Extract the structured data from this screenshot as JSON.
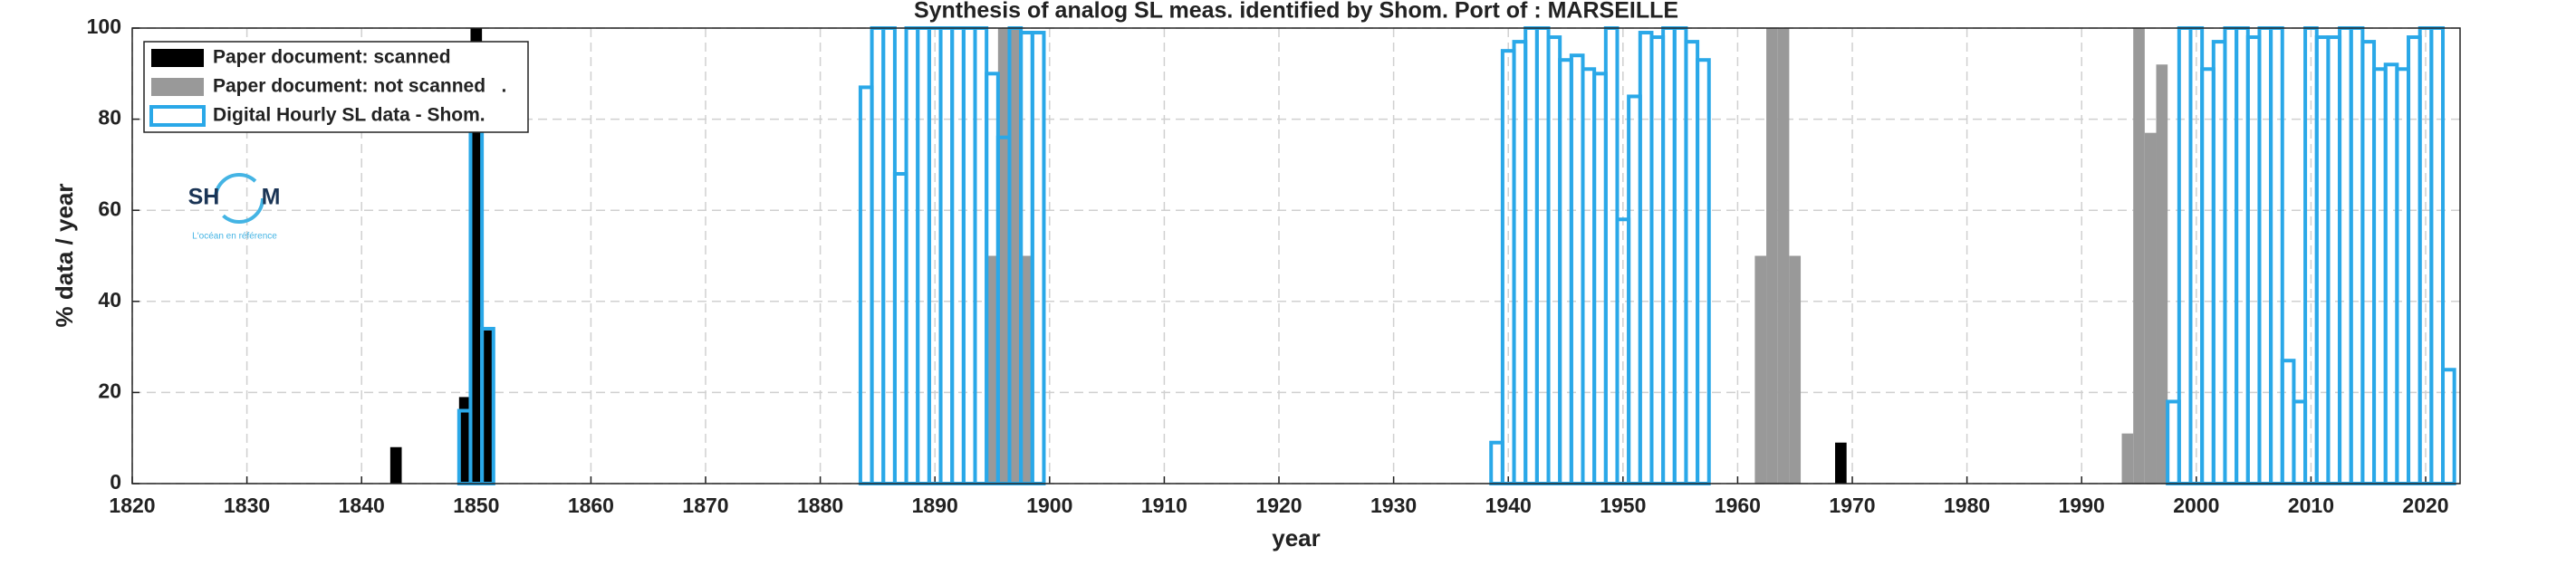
{
  "chart_data": {
    "type": "bar",
    "title": "Synthesis of analog SL meas. identified by Shom. Port of : MARSEILLE",
    "x_label": "year",
    "y_label": "% data / year",
    "xlim": [
      1820,
      2023
    ],
    "ylim": [
      0,
      100
    ],
    "xticks": [
      1820,
      1830,
      1840,
      1850,
      1860,
      1870,
      1880,
      1890,
      1900,
      1910,
      1920,
      1930,
      1940,
      1950,
      1960,
      1970,
      1980,
      1990,
      2000,
      2010,
      2020
    ],
    "yticks": [
      0,
      20,
      40,
      60,
      80,
      100
    ],
    "grid": true,
    "legend": "upper left",
    "series": [
      {
        "name": "Paper document: not scanned   .",
        "color": "#999999",
        "style": "filled",
        "x": [
          1895,
          1896,
          1897,
          1898,
          1962,
          1963,
          1964,
          1965,
          1994,
          1995,
          1996,
          1997
        ],
        "values": [
          50,
          100,
          100,
          50,
          50,
          100,
          100,
          50,
          11,
          100,
          77,
          92
        ]
      },
      {
        "name": "Paper document: scanned",
        "color": "#000000",
        "style": "filled",
        "x": [
          1843,
          1849,
          1850,
          1851,
          1969
        ],
        "values": [
          8,
          19,
          100,
          34,
          9
        ]
      },
      {
        "name": "Digital Hourly SL data - Shom.",
        "color": "#2aa8e8",
        "style": "outline",
        "x": [
          1849,
          1850,
          1851,
          1884,
          1885,
          1886,
          1887,
          1888,
          1889,
          1890,
          1891,
          1892,
          1893,
          1894,
          1895,
          1896,
          1897,
          1898,
          1899,
          1939,
          1940,
          1941,
          1942,
          1943,
          1944,
          1945,
          1946,
          1947,
          1948,
          1949,
          1950,
          1951,
          1952,
          1953,
          1954,
          1955,
          1956,
          1957,
          1998,
          1999,
          2000,
          2001,
          2002,
          2003,
          2004,
          2005,
          2006,
          2007,
          2008,
          2009,
          2010,
          2011,
          2012,
          2013,
          2014,
          2015,
          2016,
          2017,
          2018,
          2019,
          2020,
          2021,
          2022
        ],
        "values": [
          16,
          80,
          34,
          87,
          100,
          100,
          68,
          100,
          100,
          100,
          100,
          100,
          100,
          100,
          90,
          76,
          100,
          99,
          99,
          9,
          95,
          97,
          100,
          100,
          98,
          93,
          94,
          91,
          90,
          100,
          58,
          85,
          99,
          98,
          100,
          100,
          97,
          93,
          18,
          100,
          100,
          91,
          97,
          100,
          100,
          98,
          100,
          100,
          27,
          18,
          100,
          98,
          98,
          100,
          100,
          97,
          91,
          92,
          91,
          98,
          100,
          100,
          25
        ]
      }
    ]
  },
  "logo": {
    "left": "SH",
    "right": "M",
    "tagline": "L'océan en référence"
  }
}
